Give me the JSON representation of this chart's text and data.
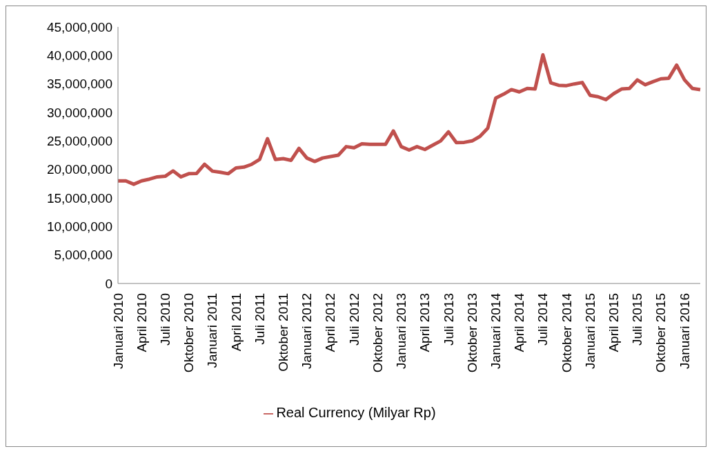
{
  "chart_data": {
    "type": "line",
    "categories": [
      "Januari 2010",
      null,
      null,
      "April 2010",
      null,
      null,
      "Juli 2010",
      null,
      null,
      "Oktober 2010",
      null,
      null,
      "Januari 2011",
      null,
      null,
      "April 2011",
      null,
      null,
      "Juli 2011",
      null,
      null,
      "Oktober 2011",
      null,
      null,
      "Januari 2012",
      null,
      null,
      "April 2012",
      null,
      null,
      "Juli 2012",
      null,
      null,
      "Oktober 2012",
      null,
      null,
      "Januari 2013",
      null,
      null,
      "April 2013",
      null,
      null,
      "Juli 2013",
      null,
      null,
      "Oktober 2013",
      null,
      null,
      "Januari 2014",
      null,
      null,
      "April 2014",
      null,
      null,
      "Juli 2014",
      null,
      null,
      "Oktober 2014",
      null,
      null,
      "Januari 2015",
      null,
      null,
      "April 2015",
      null,
      null,
      "Juli 2015",
      null,
      null,
      "Oktober 2015",
      null,
      null,
      "Januari 2016",
      null,
      null
    ],
    "series": [
      {
        "name": "Real Currency (Milyar Rp)",
        "color": "#c0504d",
        "values": [
          18000000,
          18000000,
          17400000,
          18000000,
          18300000,
          18700000,
          18800000,
          19750000,
          18700000,
          19250000,
          19300000,
          20900000,
          19700000,
          19500000,
          19250000,
          20250000,
          20400000,
          20900000,
          21750000,
          25400000,
          21750000,
          21900000,
          21600000,
          23700000,
          22000000,
          21400000,
          22000000,
          22250000,
          22500000,
          24000000,
          23800000,
          24500000,
          24400000,
          24400000,
          24400000,
          26750000,
          24000000,
          23400000,
          24000000,
          23500000,
          24250000,
          25000000,
          26600000,
          24700000,
          24750000,
          25000000,
          25800000,
          27250000,
          32500000,
          33200000,
          34000000,
          33600000,
          34200000,
          34100000,
          40100000,
          35200000,
          34750000,
          34700000,
          35000000,
          35250000,
          33000000,
          32750000,
          32250000,
          33300000,
          34100000,
          34200000,
          35700000,
          34850000,
          35400000,
          35900000,
          36000000,
          38300000,
          35700000,
          34200000,
          34000000
        ]
      }
    ],
    "ylim": [
      0,
      45000000
    ],
    "yticks": [
      {
        "value": 0,
        "label": "0"
      },
      {
        "value": 5000000,
        "label": "5,000,000"
      },
      {
        "value": 10000000,
        "label": "10,000,000"
      },
      {
        "value": 15000000,
        "label": "15,000,000"
      },
      {
        "value": 20000000,
        "label": "20,000,000"
      },
      {
        "value": 25000000,
        "label": "25,000,000"
      },
      {
        "value": 30000000,
        "label": "30,000,000"
      },
      {
        "value": 35000000,
        "label": "35,000,000"
      },
      {
        "value": 40000000,
        "label": "40,000,000"
      },
      {
        "value": 45000000,
        "label": "45,000,000"
      }
    ],
    "grid": false,
    "legend": "bottom",
    "marker": "none",
    "line_style": "solid"
  }
}
